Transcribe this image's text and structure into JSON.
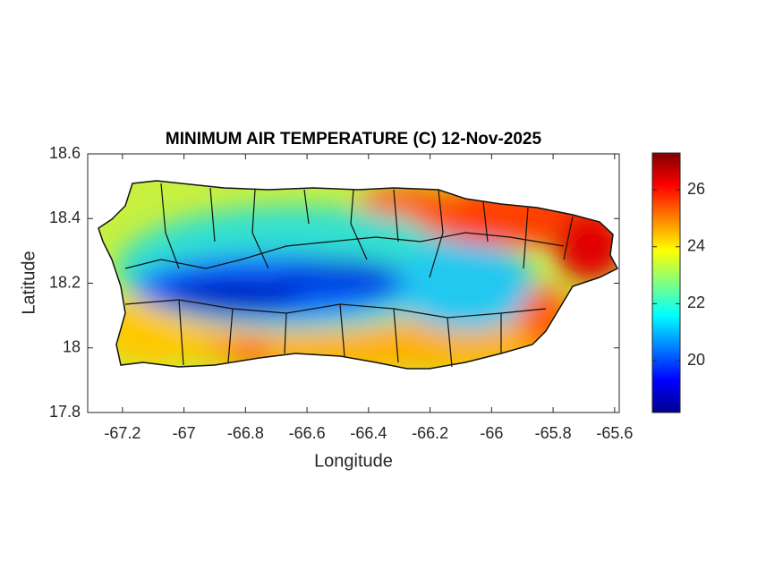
{
  "chart_data": {
    "type": "map",
    "title": "MINIMUM AIR TEMPERATURE (C) 12-Nov-2025",
    "xlabel": "Longitude",
    "ylabel": "Latitude",
    "xlim": [
      -67.313,
      -65.585
    ],
    "ylim": [
      17.8,
      18.6
    ],
    "xticks": [
      -67.2,
      -67,
      -66.8,
      -66.6,
      -66.4,
      -66.2,
      -66,
      -65.8,
      -65.6
    ],
    "yticks": [
      17.8,
      18,
      18.2,
      18.4,
      18.6
    ],
    "colormap": "jet",
    "colorbar": {
      "clim": [
        18.18,
        27.29
      ],
      "ticks": [
        20,
        22,
        24,
        26
      ]
    }
  }
}
